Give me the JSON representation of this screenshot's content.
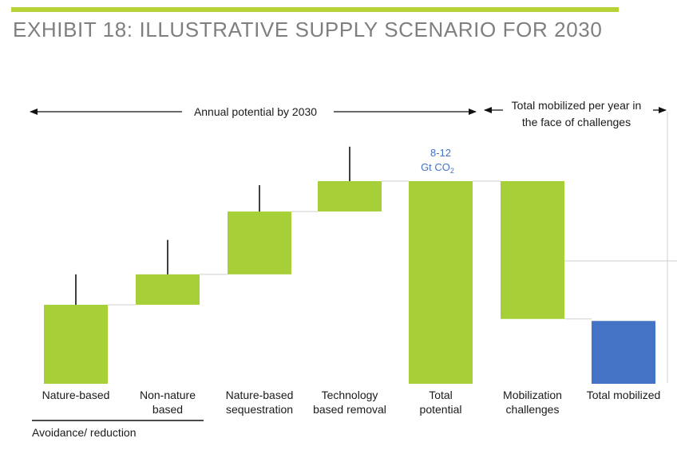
{
  "header": {
    "title": "EXHIBIT 18: ILLUSTRATIVE SUPPLY SCENARIO FOR 2030",
    "rule_color": "#b5d334"
  },
  "annotations": {
    "annual_potential": "Annual potential by 2030",
    "total_mobilized_line1": "Total mobilized per year in",
    "total_mobilized_line2": "the face of challenges",
    "total_value_line1": "8-12",
    "total_value_line2": "Gt CO",
    "total_value_subscript": "2",
    "group_label": "Avoidance/ reduction"
  },
  "colors": {
    "green": "#a7cf38",
    "blue": "#4472c4",
    "connector": "#cfcfcf",
    "total_label": "#4472c4"
  },
  "chart_data": {
    "type": "waterfall",
    "title": "",
    "xlabel": "",
    "ylabel": "",
    "ylim": [
      0,
      100
    ],
    "grid": false,
    "legend": "none",
    "categories": [
      {
        "label_lines": [
          "Nature-based"
        ],
        "base": 0,
        "top": 39,
        "color": "green",
        "error": [
          54,
          20
        ]
      },
      {
        "label_lines": [
          "Non-nature",
          "based"
        ],
        "base": 39,
        "top": 54,
        "color": "green",
        "error": [
          71,
          47
        ]
      },
      {
        "label_lines": [
          "Nature-based",
          "sequestration"
        ],
        "base": 54,
        "top": 85,
        "color": "green",
        "error": [
          98,
          72
        ]
      },
      {
        "label_lines": [
          "Technology",
          "based removal"
        ],
        "base": 85,
        "top": 100,
        "color": "green",
        "error": [
          117,
          92
        ]
      },
      {
        "label_lines": [
          "Total",
          "potential"
        ],
        "base": 0,
        "top": 100,
        "color": "green",
        "error": null
      },
      {
        "label_lines": [
          "Mobilization",
          "challenges"
        ],
        "base": 32,
        "top": 100,
        "color": "green",
        "error": null
      },
      {
        "label_lines": [
          "Total mobilized"
        ],
        "base": 0,
        "top": 31,
        "color": "blue",
        "error": null
      }
    ]
  }
}
